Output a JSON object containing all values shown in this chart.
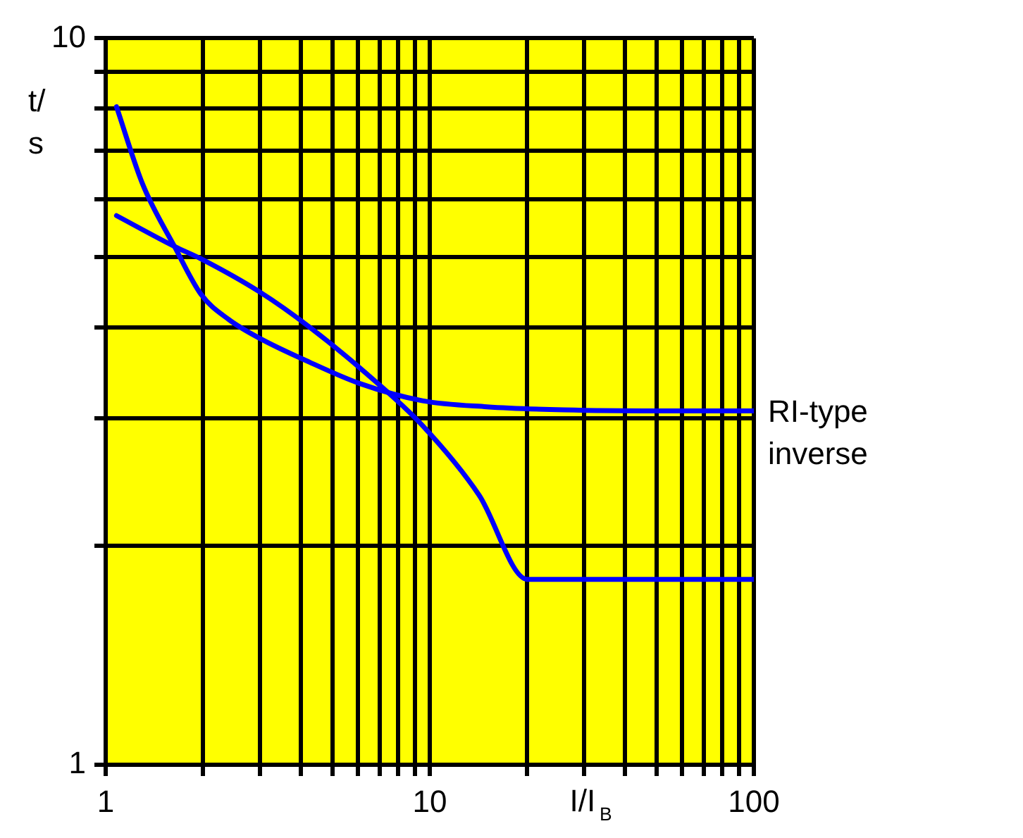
{
  "chart_data": {
    "type": "line",
    "xlabel": "I/I$_{B}$",
    "ylabel": "t/s",
    "log": "xy",
    "grid": true,
    "legend": false,
    "marker": "none",
    "line_style": "solid",
    "xlim": [
      1,
      100
    ],
    "ylim": [
      1,
      10
    ],
    "xticks": [
      1,
      {
        "value": 2,
        "label": null
      },
      {
        "value": 3,
        "label": null
      },
      {
        "value": 4,
        "label": null
      },
      {
        "value": 5,
        "label": null
      },
      {
        "value": 6,
        "label": null
      },
      {
        "value": 7,
        "label": null
      },
      {
        "value": 8,
        "label": null
      },
      {
        "value": 9,
        "label": null
      },
      10,
      {
        "value": 20,
        "label": null
      },
      {
        "value": 30,
        "label": null
      },
      {
        "value": 40,
        "label": null
      },
      {
        "value": 50,
        "label": null
      },
      {
        "value": 60,
        "label": null
      },
      {
        "value": 70,
        "label": null
      },
      {
        "value": 80,
        "label": null
      },
      {
        "value": 90,
        "label": null
      },
      100
    ],
    "yticks": [
      1,
      {
        "value": 2,
        "label": null
      },
      {
        "value": 3,
        "label": null
      },
      {
        "value": 4,
        "label": null
      },
      {
        "value": 5,
        "label": null
      },
      {
        "value": 6,
        "label": null
      },
      {
        "value": 7,
        "label": null
      },
      {
        "value": 8,
        "label": null
      },
      {
        "value": 9,
        "label": null
      },
      10
    ],
    "series": [
      {
        "name": "RI-type inverse",
        "color": "#0000ff",
        "x": [
          1.08,
          1.3,
          1.63,
          1.97,
          2.4,
          3.0,
          4.27,
          6.06,
          9.5,
          15,
          25.9,
          50,
          100
        ],
        "values": [
          8.05,
          6.3,
          5.17,
          4.44,
          4.1,
          3.86,
          3.58,
          3.35,
          3.17,
          3.11,
          3.08,
          3.07,
          3.07
        ]
      },
      {
        "color": "#0000ff",
        "x": [
          1.08,
          1.63,
          1.97,
          3.0,
          4.27,
          6.4,
          9.5,
          14.2,
          20,
          50,
          100
        ],
        "values": [
          5.7,
          5.17,
          4.97,
          4.47,
          4.0,
          3.45,
          2.93,
          2.35,
          1.8,
          1.8,
          1.8
        ]
      }
    ]
  }
}
